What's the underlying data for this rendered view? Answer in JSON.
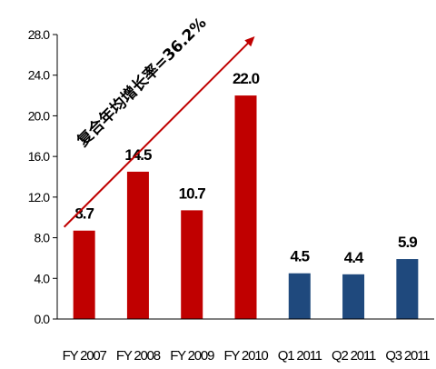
{
  "chart_data": {
    "type": "bar",
    "categories": [
      "FY 2007",
      "FY 2008",
      "FY 2009",
      "FY 2010",
      "Q1 2011",
      "Q2 2011",
      "Q3 2011"
    ],
    "values": [
      8.7,
      14.5,
      10.7,
      22.0,
      4.5,
      4.4,
      5.9
    ],
    "data_labels": [
      "8.7",
      "14.5",
      "10.7",
      "22.0",
      "4.5",
      "4.4",
      "5.9"
    ],
    "bar_colors": [
      "#c00000",
      "#c00000",
      "#c00000",
      "#c00000",
      "#1f497d",
      "#1f497d",
      "#1f497d"
    ],
    "y_ticks": [
      "0.0",
      "4.0",
      "8.0",
      "12.0",
      "16.0",
      "20.0",
      "24.0",
      "28.0"
    ],
    "ylim": [
      0,
      28
    ],
    "grid": false,
    "annotation": {
      "text": "复合年均增长率=36.2%",
      "color": "#c00000"
    }
  }
}
